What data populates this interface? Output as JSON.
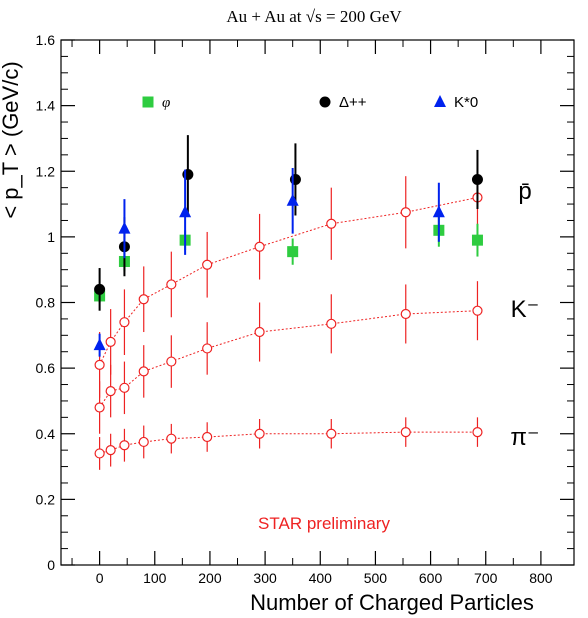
{
  "chart_data": {
    "type": "scatter",
    "title": "Au + Au at √s = 200 GeV",
    "xlabel": "Number of Charged Particles",
    "ylabel": "< p_T > (GeV/c)",
    "xlim": [
      -70,
      860
    ],
    "ylim": [
      0,
      1.6
    ],
    "xticks": [
      0,
      100,
      200,
      300,
      400,
      500,
      600,
      700,
      800
    ],
    "yticks": [
      0,
      0.2,
      0.4,
      0.6,
      0.8,
      1,
      1.2,
      1.4,
      1.6
    ],
    "ytick_labels": [
      "0",
      "0.2",
      "0.4",
      "0.6",
      "0.8",
      "1",
      "1.2",
      "1.4",
      "1.6"
    ],
    "annotation": "STAR preliminary",
    "colors": {
      "phi": "#2ecc40",
      "delta": "#000000",
      "kstar": "#0022ee",
      "stable": "#ee2222",
      "annotation": "#ee2222"
    },
    "legend": [
      {
        "label": "φ",
        "marker": "square",
        "color": "#2ecc40"
      },
      {
        "label": "Δ++",
        "marker": "circle",
        "color": "#000000"
      },
      {
        "label": "K*0",
        "marker": "triangle",
        "color": "#0022ee"
      }
    ],
    "curve_labels": [
      {
        "text": "p̄",
        "y": 1.14
      },
      {
        "text": "K⁻",
        "y": 0.78
      },
      {
        "text": "π⁻",
        "y": 0.39
      }
    ],
    "series": [
      {
        "name": "π⁻",
        "marker": "open-circle",
        "dashed": true,
        "x": [
          0,
          20,
          45,
          80,
          130,
          195,
          290,
          420,
          555,
          685
        ],
        "y": [
          0.34,
          0.35,
          0.365,
          0.375,
          0.385,
          0.39,
          0.4,
          0.4,
          0.405,
          0.405
        ],
        "err": [
          0.05,
          0.05,
          0.05,
          0.05,
          0.045,
          0.045,
          0.045,
          0.045,
          0.045,
          0.045
        ]
      },
      {
        "name": "K⁻",
        "marker": "open-circle",
        "dashed": true,
        "x": [
          0,
          20,
          45,
          80,
          130,
          195,
          290,
          420,
          555,
          685
        ],
        "y": [
          0.48,
          0.53,
          0.54,
          0.59,
          0.62,
          0.66,
          0.71,
          0.735,
          0.765,
          0.775
        ],
        "err": [
          0.08,
          0.08,
          0.08,
          0.08,
          0.08,
          0.08,
          0.09,
          0.09,
          0.09,
          0.09
        ]
      },
      {
        "name": "p̄",
        "marker": "open-circle",
        "dashed": true,
        "x": [
          0,
          20,
          45,
          80,
          130,
          195,
          290,
          420,
          555,
          685
        ],
        "y": [
          0.61,
          0.68,
          0.74,
          0.81,
          0.855,
          0.915,
          0.97,
          1.04,
          1.075,
          1.12
        ],
        "err": [
          0.1,
          0.1,
          0.1,
          0.1,
          0.1,
          0.1,
          0.1,
          0.11,
          0.11,
          0.12
        ]
      },
      {
        "name": "φ",
        "marker": "square",
        "x": [
          0,
          45,
          155,
          350,
          615,
          685
        ],
        "y": [
          0.82,
          0.925,
          0.99,
          0.955,
          1.02,
          0.99
        ],
        "err": [
          0.02,
          0.03,
          0.03,
          0.04,
          0.05,
          0.05
        ]
      },
      {
        "name": "Δ++",
        "marker": "circle",
        "x": [
          0,
          45,
          160,
          355,
          685
        ],
        "y": [
          0.84,
          0.97,
          1.19,
          1.175,
          1.175
        ],
        "err": [
          0.065,
          0.09,
          0.12,
          0.11,
          0.09
        ]
      },
      {
        "name": "K*0",
        "marker": "triangle",
        "x": [
          0,
          45,
          155,
          350,
          615
        ],
        "y": [
          0.67,
          1.025,
          1.075,
          1.11,
          1.075
        ],
        "err": [
          0.035,
          0.09,
          0.13,
          0.1,
          0.09
        ]
      }
    ]
  }
}
